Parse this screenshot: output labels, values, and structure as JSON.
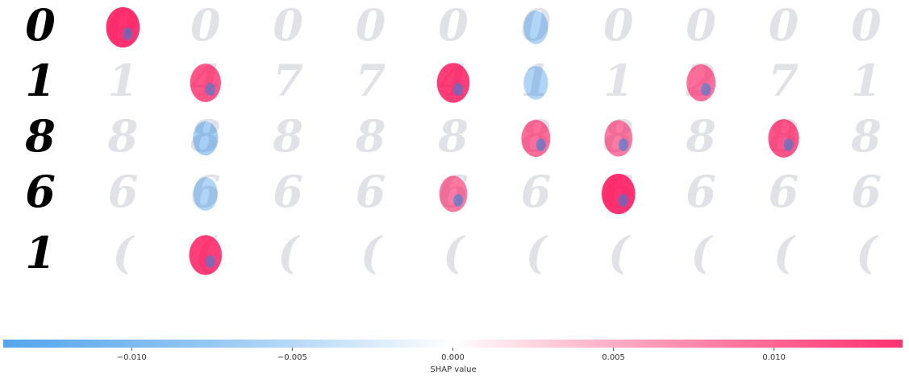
{
  "chart_data": {
    "type": "image-grid",
    "rows": [
      {
        "digit": "0",
        "cells": [
          {
            "s": 0.012,
            "l": "0"
          },
          {
            "s": 0,
            "l": "0"
          },
          {
            "s": 0,
            "l": "0"
          },
          {
            "s": 0,
            "l": "0"
          },
          {
            "s": 0,
            "l": "0"
          },
          {
            "s": -0.002,
            "l": "0"
          },
          {
            "s": 0,
            "l": "0"
          },
          {
            "s": 0,
            "l": "0"
          },
          {
            "s": 0,
            "l": "0"
          },
          {
            "s": 0,
            "l": "0"
          }
        ]
      },
      {
        "digit": "1",
        "cells": [
          {
            "s": 0,
            "l": "1"
          },
          {
            "s": 0.009,
            "l": "4"
          },
          {
            "s": 0,
            "l": "7"
          },
          {
            "s": 0,
            "l": "7"
          },
          {
            "s": 0.011,
            "l": "4"
          },
          {
            "s": -0.002,
            "l": "1"
          },
          {
            "s": 0,
            "l": "1"
          },
          {
            "s": 0.007,
            "l": "2"
          },
          {
            "s": 0,
            "l": "7"
          },
          {
            "s": 0,
            "l": "1"
          }
        ]
      },
      {
        "digit": "8",
        "cells": [
          {
            "s": 0,
            "l": "8"
          },
          {
            "s": -0.003,
            "l": "8"
          },
          {
            "s": 0,
            "l": "8"
          },
          {
            "s": 0,
            "l": "8"
          },
          {
            "s": 0,
            "l": "8"
          },
          {
            "s": 0.007,
            "l": "8"
          },
          {
            "s": 0.006,
            "l": "8"
          },
          {
            "s": 0,
            "l": "8"
          },
          {
            "s": 0.009,
            "l": "8"
          },
          {
            "s": 0,
            "l": "8"
          }
        ]
      },
      {
        "digit": "6",
        "cells": [
          {
            "s": 0,
            "l": "6"
          },
          {
            "s": -0.002,
            "l": "6"
          },
          {
            "s": 0,
            "l": "6"
          },
          {
            "s": 0,
            "l": "6"
          },
          {
            "s": 0.006,
            "l": "6"
          },
          {
            "s": 0,
            "l": "6"
          },
          {
            "s": 0.012,
            "l": "6"
          },
          {
            "s": 0,
            "l": "6"
          },
          {
            "s": 0,
            "l": "6"
          },
          {
            "s": 0,
            "l": "6"
          }
        ]
      },
      {
        "digit": "1",
        "cells": [
          {
            "s": 0,
            "l": "("
          },
          {
            "s": 0.011,
            "l": "("
          },
          {
            "s": 0,
            "l": "("
          },
          {
            "s": 0,
            "l": "("
          },
          {
            "s": 0,
            "l": "("
          },
          {
            "s": 0,
            "l": "("
          },
          {
            "s": 0,
            "l": "("
          },
          {
            "s": 0,
            "l": "("
          },
          {
            "s": 0,
            "l": "("
          },
          {
            "s": 0,
            "l": "("
          }
        ]
      }
    ],
    "colorbar": {
      "min": -0.014,
      "max": 0.014,
      "ticks": [
        -0.01,
        -0.005,
        0.0,
        0.005,
        0.01
      ],
      "tick_labels": [
        "−0.010",
        "−0.005",
        "0.000",
        "0.005",
        "0.010"
      ],
      "label": "SHAP value",
      "negative_color": "#1e88e5",
      "positive_color": "#ff0d57"
    }
  }
}
